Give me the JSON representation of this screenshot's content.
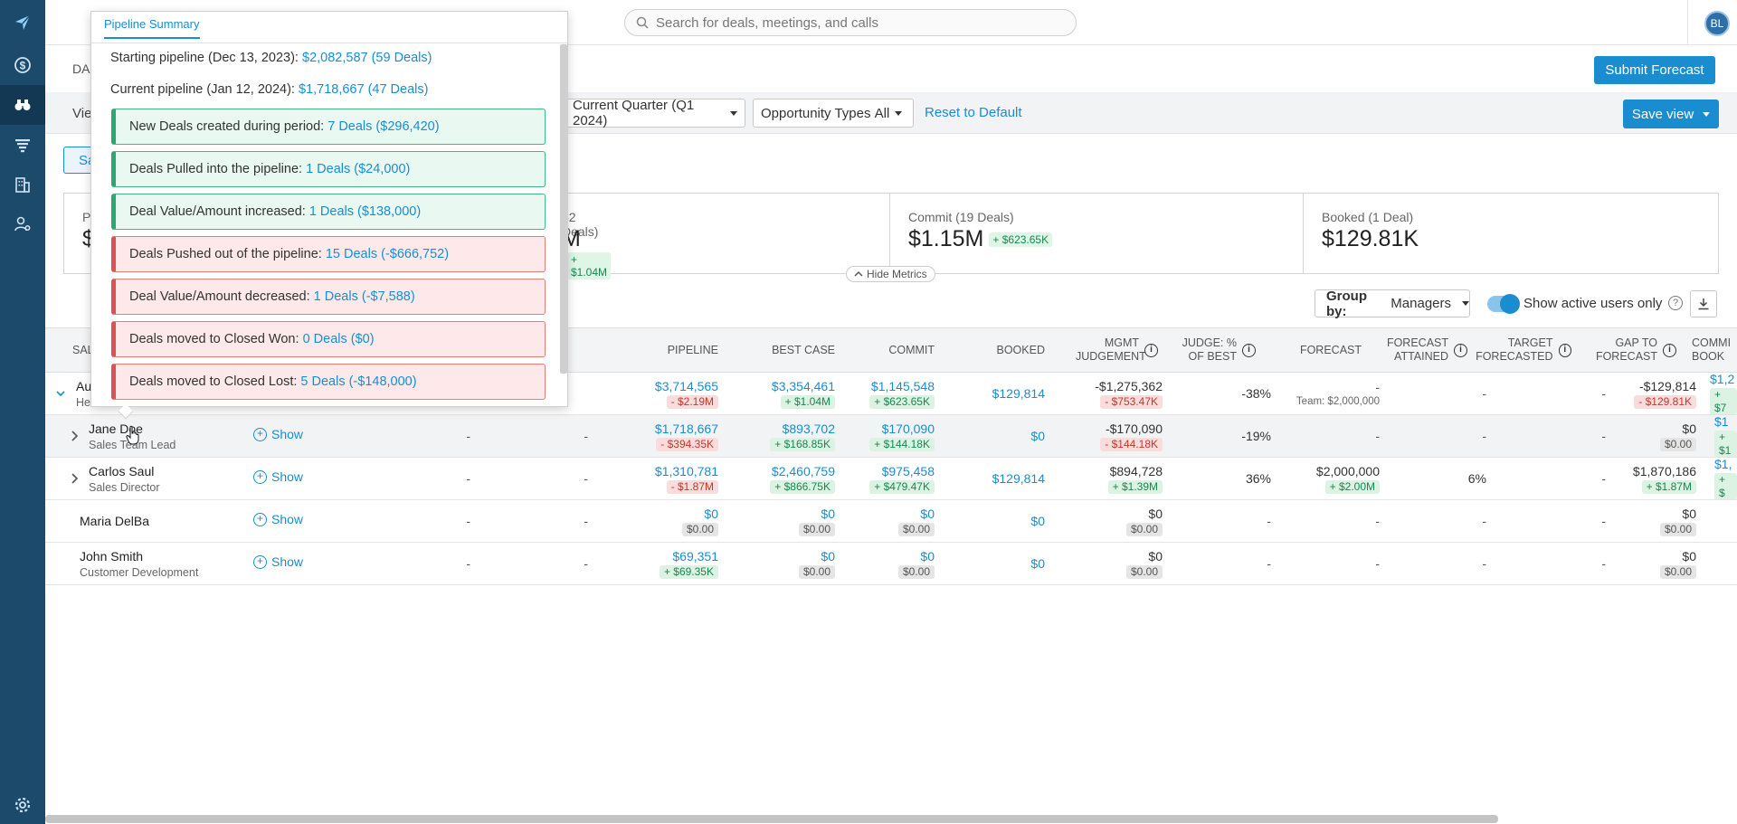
{
  "topbar": {
    "search_placeholder": "Search for deals, meetings, and calls",
    "avatar_initials": "BL"
  },
  "header": {
    "tab_partial": "DA",
    "submit_forecast": "Submit Forecast",
    "save_view": "Save view"
  },
  "filters": {
    "view_partial": "Vie",
    "period": "Current Quarter (Q1 2024)",
    "opportunity_label": "Opportunity Types",
    "opportunity_value": "All",
    "reset": "Reset to Default",
    "segment_partial": "Sa"
  },
  "metrics": {
    "partial_label": "P",
    "partial_value": "$",
    "best_case_label": "62 Deals)",
    "best_case_value": "M",
    "best_case_delta": "+ $1.04M",
    "commit_label": "Commit (19 Deals)",
    "commit_value": "$1.15M",
    "commit_delta": "+ $623.65K",
    "booked_label": "Booked (1 Deal)",
    "booked_value": "$129.81K",
    "hide_metrics": "Hide Metrics"
  },
  "toolbar": {
    "group_by_label": "Group by:",
    "group_by_value": "Managers",
    "show_active": "Show active users only",
    "help": "?"
  },
  "table": {
    "headers": {
      "sales_partial": "SAL",
      "pipeline": "PIPELINE",
      "best_case": "BEST CASE",
      "commit": "COMMIT",
      "booked": "BOOKED",
      "mgmt_judgement": "MGMT JUDGEMENT",
      "judge_best": "JUDGE: % OF BEST",
      "forecast": "FORECAST",
      "forecast_attained": "FORECAST ATTAINED",
      "target_forecasted": "TARGET FORECASTED",
      "gap_to_forecast": "GAP TO FORECAST",
      "commit_book_partial": "COMMI BOOK"
    },
    "show_label": "Show",
    "dash": "-",
    "rows": [
      {
        "name": "Au",
        "role": "He",
        "pipeline": "$3,714,565",
        "pipeline_d": "- $2.19M",
        "best_case": "$3,354,461",
        "best_case_d": "+ $1.04M",
        "commit": "$1,145,548",
        "commit_d": "+ $623.65K",
        "booked": "$129,814",
        "mgmt": "-$1,275,362",
        "mgmt_d": "- $753.47K",
        "judge": "-38%",
        "forecast": "-",
        "forecast_note": "Team: $2,000,000",
        "attained": "-",
        "target": "-",
        "gap": "-$129,814",
        "gap_d": "- $129.81K",
        "cb": "$1,2",
        "cb_d": "+ $7"
      },
      {
        "name": "Jane Doe",
        "role": "Sales Team Lead",
        "pipeline": "$1,718,667",
        "pipeline_d": "- $394.35K",
        "best_case": "$893,702",
        "best_case_d": "+ $168.85K",
        "commit": "$170,090",
        "commit_d": "+ $144.18K",
        "booked": "$0",
        "mgmt": "-$170,090",
        "mgmt_d": "- $144.18K",
        "judge": "-19%",
        "forecast": "-",
        "attained": "-",
        "target": "-",
        "gap": "$0",
        "gap_d": "$0.00",
        "cb": "$1",
        "cb_d": "+ $1"
      },
      {
        "name": "Carlos Saul",
        "role": "Sales Director",
        "pipeline": "$1,310,781",
        "pipeline_d": "- $1.87M",
        "best_case": "$2,460,759",
        "best_case_d": "+ $866.75K",
        "commit": "$975,458",
        "commit_d": "+ $479.47K",
        "booked": "$129,814",
        "mgmt": "$894,728",
        "mgmt_d": "+ $1.39M",
        "judge": "36%",
        "forecast": "$2,000,000",
        "forecast_d": "+ $2.00M",
        "attained": "6%",
        "target": "-",
        "gap": "$1,870,186",
        "gap_d": "+ $1.87M",
        "cb": "$1,",
        "cb_d": "+ $"
      },
      {
        "name": "Maria DelBa",
        "role": "",
        "pipeline": "$0",
        "pipeline_d": "$0.00",
        "best_case": "$0",
        "best_case_d": "$0.00",
        "commit": "$0",
        "commit_d": "$0.00",
        "booked": "$0",
        "mgmt": "$0",
        "mgmt_d": "$0.00",
        "judge": "-",
        "forecast": "-",
        "attained": "-",
        "target": "-",
        "gap": "$0",
        "gap_d": "$0.00",
        "cb": "",
        "cb_d": ""
      },
      {
        "name": "John Smith",
        "role": "Customer Development",
        "pipeline": "$69,351",
        "pipeline_d": "+ $69.35K",
        "best_case": "$0",
        "best_case_d": "$0.00",
        "commit": "$0",
        "commit_d": "$0.00",
        "booked": "$0",
        "mgmt": "$0",
        "mgmt_d": "$0.00",
        "judge": "-",
        "forecast": "-",
        "attained": "-",
        "target": "-",
        "gap": "$0",
        "gap_d": "$0.00",
        "cb": "",
        "cb_d": ""
      }
    ]
  },
  "popup": {
    "tab": "Pipeline Summary",
    "starting_label": "Starting pipeline (Dec 13, 2023):",
    "starting_value": "$2,082,587 (59 Deals)",
    "current_label": "Current pipeline (Jan 12, 2024):",
    "current_value": "$1,718,667 (47 Deals)",
    "cards": [
      {
        "label": "New Deals created during period:",
        "value": "7 Deals ($296,420)",
        "tone": "green"
      },
      {
        "label": "Deals Pulled into the pipeline:",
        "value": "1 Deals ($24,000)",
        "tone": "green"
      },
      {
        "label": "Deal Value/Amount increased:",
        "value": "1 Deals ($138,000)",
        "tone": "green"
      },
      {
        "label": "Deals Pushed out of the pipeline:",
        "value": "15 Deals (-$666,752)",
        "tone": "red"
      },
      {
        "label": "Deal Value/Amount decreased:",
        "value": "1 Deals (-$7,588)",
        "tone": "red"
      },
      {
        "label": "Deals moved to Closed Won:",
        "value": "0 Deals ($0)",
        "tone": "red"
      },
      {
        "label": "Deals moved to Closed Lost:",
        "value": "5 Deals (-$148,000)",
        "tone": "red"
      }
    ]
  },
  "colors": {
    "sidebar": "#1b4a6b",
    "accent": "#1a8dd1",
    "positive": "#198754",
    "negative": "#c0392b"
  }
}
